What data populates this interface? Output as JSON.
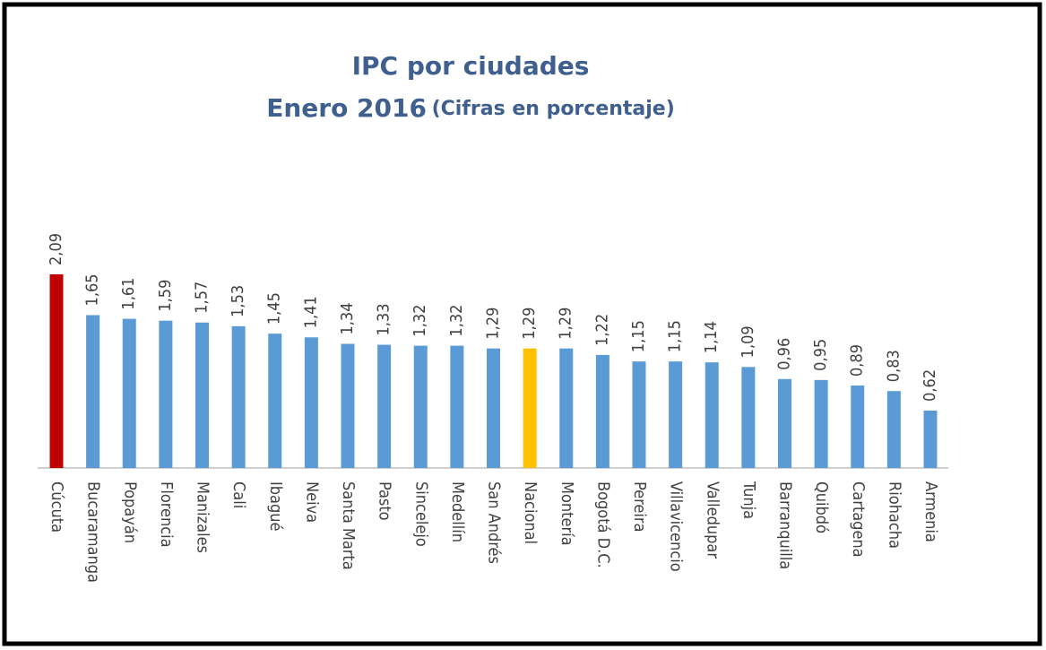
{
  "chart_data": {
    "type": "bar",
    "title": "IPC por ciudades",
    "subtitle": "Enero 2016",
    "unit_note": "(Cifras en porcentaje)",
    "categories": [
      "Cúcuta",
      "Bucaramanga",
      "Popayán",
      "Florencia",
      "Manizales",
      "Cali",
      "Ibagué",
      "Neiva",
      "Santa Marta",
      "Pasto",
      "Sincelejo",
      "Medellín",
      "San Andrés",
      "Nacional",
      "Montería",
      "Bogotá D.C.",
      "Pereira",
      "Villavicencio",
      "Valledupar",
      "Tunja",
      "Barranquilla",
      "Quibdó",
      "Cartagena",
      "Riohacha",
      "Armenia"
    ],
    "values": [
      2.09,
      1.65,
      1.61,
      1.59,
      1.57,
      1.53,
      1.45,
      1.41,
      1.34,
      1.33,
      1.32,
      1.32,
      1.29,
      1.29,
      1.29,
      1.22,
      1.15,
      1.15,
      1.14,
      1.09,
      0.96,
      0.95,
      0.89,
      0.83,
      0.62
    ],
    "value_labels": [
      "2,09",
      "1,65",
      "1,61",
      "1,59",
      "1,57",
      "1,53",
      "1,45",
      "1,41",
      "1,34",
      "1,33",
      "1,32",
      "1,32",
      "1,29",
      "1,29",
      "1,29",
      "1,22",
      "1,15",
      "1,15",
      "1,14",
      "1,09",
      "0,96",
      "0,95",
      "0,89",
      "0,83",
      "0,62"
    ],
    "colors": [
      "#c00000",
      "#5b9bd5",
      "#5b9bd5",
      "#5b9bd5",
      "#5b9bd5",
      "#5b9bd5",
      "#5b9bd5",
      "#5b9bd5",
      "#5b9bd5",
      "#5b9bd5",
      "#5b9bd5",
      "#5b9bd5",
      "#5b9bd5",
      "#ffc000",
      "#5b9bd5",
      "#5b9bd5",
      "#5b9bd5",
      "#5b9bd5",
      "#5b9bd5",
      "#5b9bd5",
      "#5b9bd5",
      "#5b9bd5",
      "#5b9bd5",
      "#5b9bd5",
      "#5b9bd5"
    ]
  }
}
